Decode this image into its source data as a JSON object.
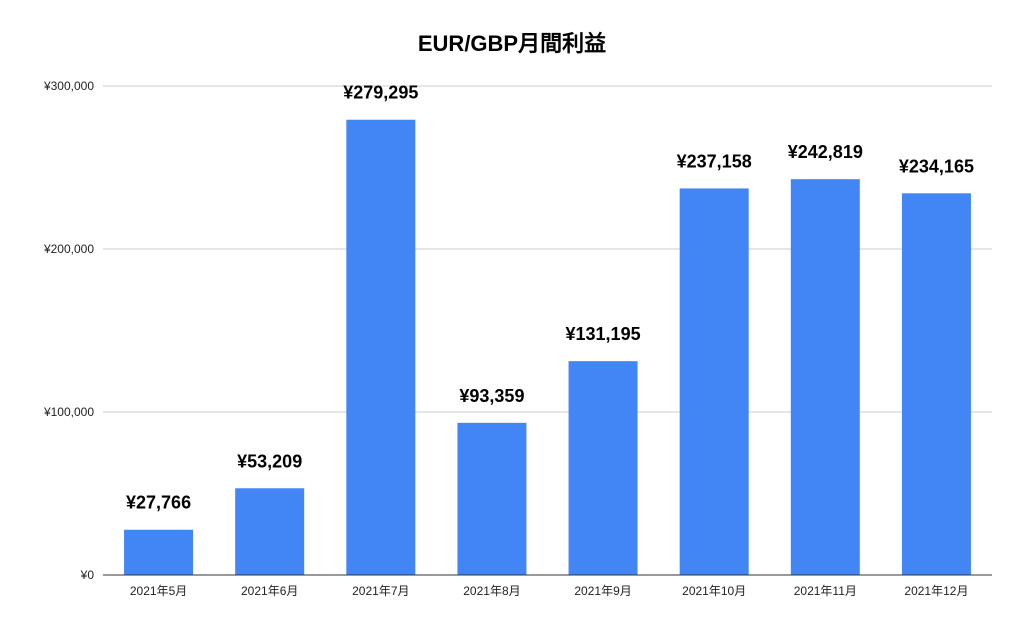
{
  "chart_data": {
    "type": "bar",
    "title": "EUR/GBP月間利益",
    "xlabel": "",
    "ylabel": "",
    "categories": [
      "2021年5月",
      "2021年6月",
      "2021年7月",
      "2021年8月",
      "2021年9月",
      "2021年10月",
      "2021年11月",
      "2021年12月"
    ],
    "values": [
      27766,
      53209,
      279295,
      93359,
      131195,
      237158,
      242819,
      234165
    ],
    "data_labels": [
      "¥27,766",
      "¥53,209",
      "¥279,295",
      "¥93,359",
      "¥131,195",
      "¥237,158",
      "¥242,819",
      "¥234,165"
    ],
    "ylim": [
      0,
      300000
    ],
    "yticks": [
      0,
      100000,
      200000,
      300000
    ],
    "ytick_labels": [
      "¥0",
      "¥100,000",
      "¥200,000",
      "¥300,000"
    ],
    "grid": true,
    "legend": "none",
    "bar_color": "#4285f4",
    "grid_color": "#cccccc",
    "axis_color": "#333333"
  }
}
